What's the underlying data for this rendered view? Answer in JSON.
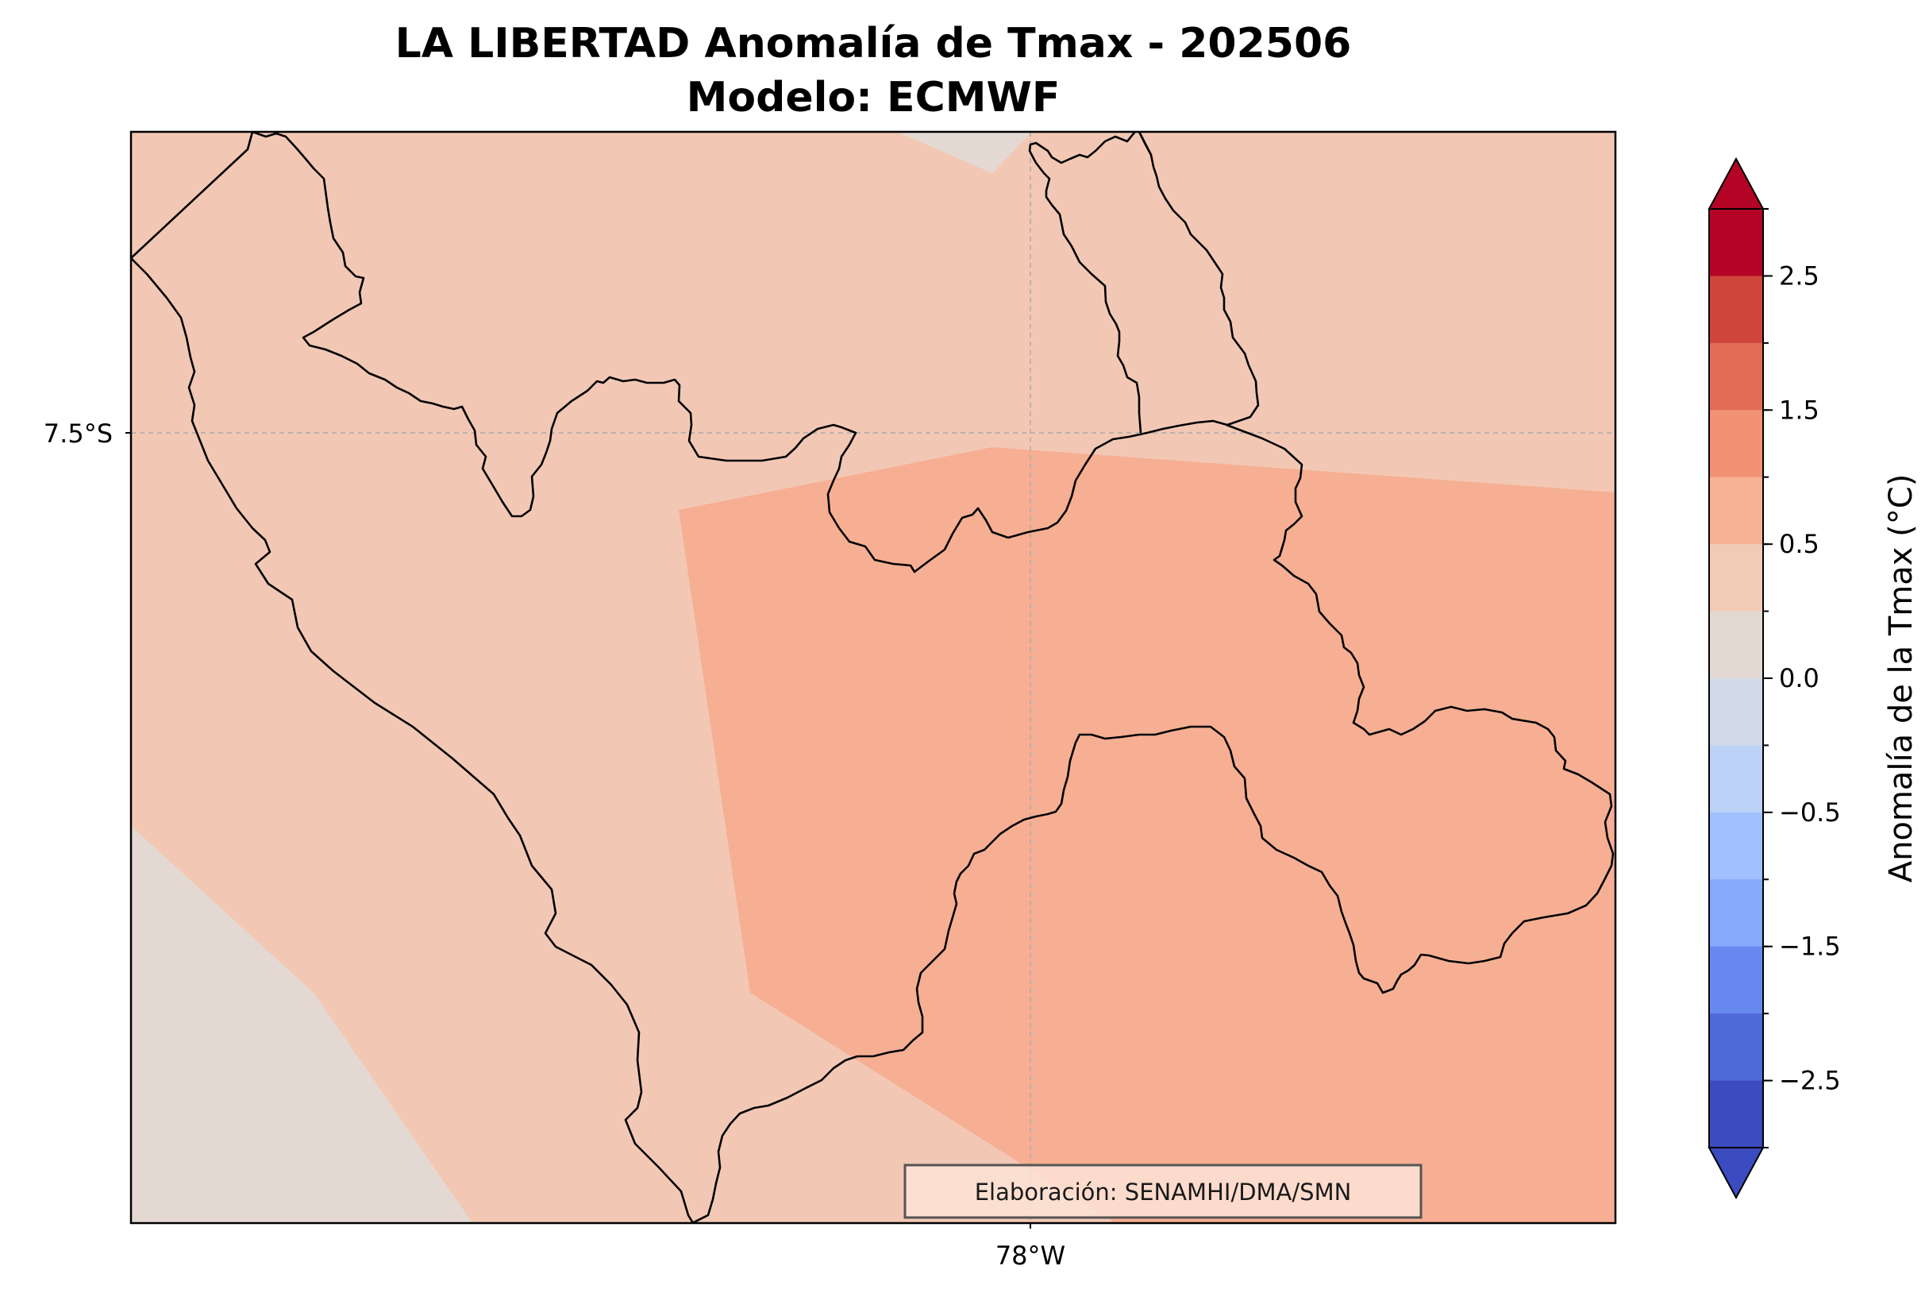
{
  "title": {
    "line1": "LA LIBERTAD Anomalía de Tmax - 202506",
    "line2": "Modelo: ECMWF"
  },
  "map": {
    "lat_tick_label": "7.5°S",
    "lon_tick_label": "78°W",
    "credit": "Elaboración: SENAMHI/DMA/SMN",
    "colors": {
      "near_zero": "#e4d9d2",
      "low_positive": "#f2c8b4",
      "mid_positive": "#f6af93",
      "border": "#000000",
      "gridline": "#aaaaaa"
    }
  },
  "colorbar": {
    "label": "Anomalía de la Tmax (°C)",
    "ticks": [
      "2.5",
      "1.5",
      "0.5",
      "0.0",
      "−0.5",
      "−1.5",
      "−2.5"
    ],
    "colors_top_to_bottom": [
      "#b40426",
      "#cf453c",
      "#e36c55",
      "#f29274",
      "#f7b194",
      "#f2cbb7",
      "#e4d9d2",
      "#d1dae9",
      "#bcd2f7",
      "#a1c0ff",
      "#86a9fc",
      "#6788ee",
      "#4f69d9",
      "#3b4cc0"
    ],
    "extend_max_color": "#b40426",
    "extend_min_color": "#3b4cc0"
  }
}
